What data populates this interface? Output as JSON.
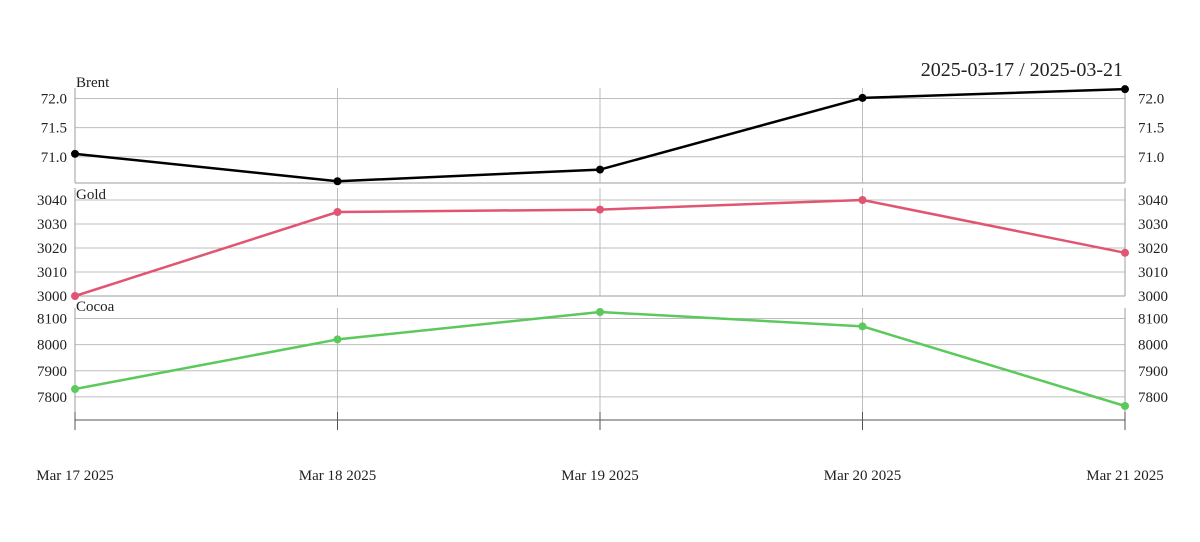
{
  "chart_data": {
    "type": "line",
    "date_range": "2025-03-17 / 2025-03-21",
    "x": [
      "Mar 17 2025",
      "Mar 18 2025",
      "Mar 19 2025",
      "Mar 20 2025",
      "Mar 21 2025"
    ],
    "panels": [
      {
        "name": "Brent",
        "color": "#000000",
        "values": [
          71.05,
          70.58,
          70.78,
          72.01,
          72.16
        ],
        "ylim": [
          70.55,
          72.18
        ],
        "yticks": [
          "71.0",
          "71.5",
          "72.0"
        ],
        "ytick_values": [
          71.0,
          71.5,
          72.0
        ]
      },
      {
        "name": "Gold",
        "color": "#e05571",
        "values": [
          3000,
          3035,
          3036,
          3040,
          3018
        ],
        "ylim": [
          3000,
          3040
        ],
        "yticks": [
          "3000",
          "3010",
          "3020",
          "3030",
          "3040"
        ],
        "ytick_values": [
          3000,
          3010,
          3020,
          3030,
          3040
        ]
      },
      {
        "name": "Cocoa",
        "color": "#5cc95c",
        "values": [
          7830,
          8020,
          8125,
          8070,
          7765
        ],
        "ylim": [
          7765,
          8125
        ],
        "yticks": [
          "7800",
          "7900",
          "8000",
          "8100"
        ],
        "ytick_values": [
          7800,
          7900,
          8000,
          8100
        ]
      }
    ]
  }
}
